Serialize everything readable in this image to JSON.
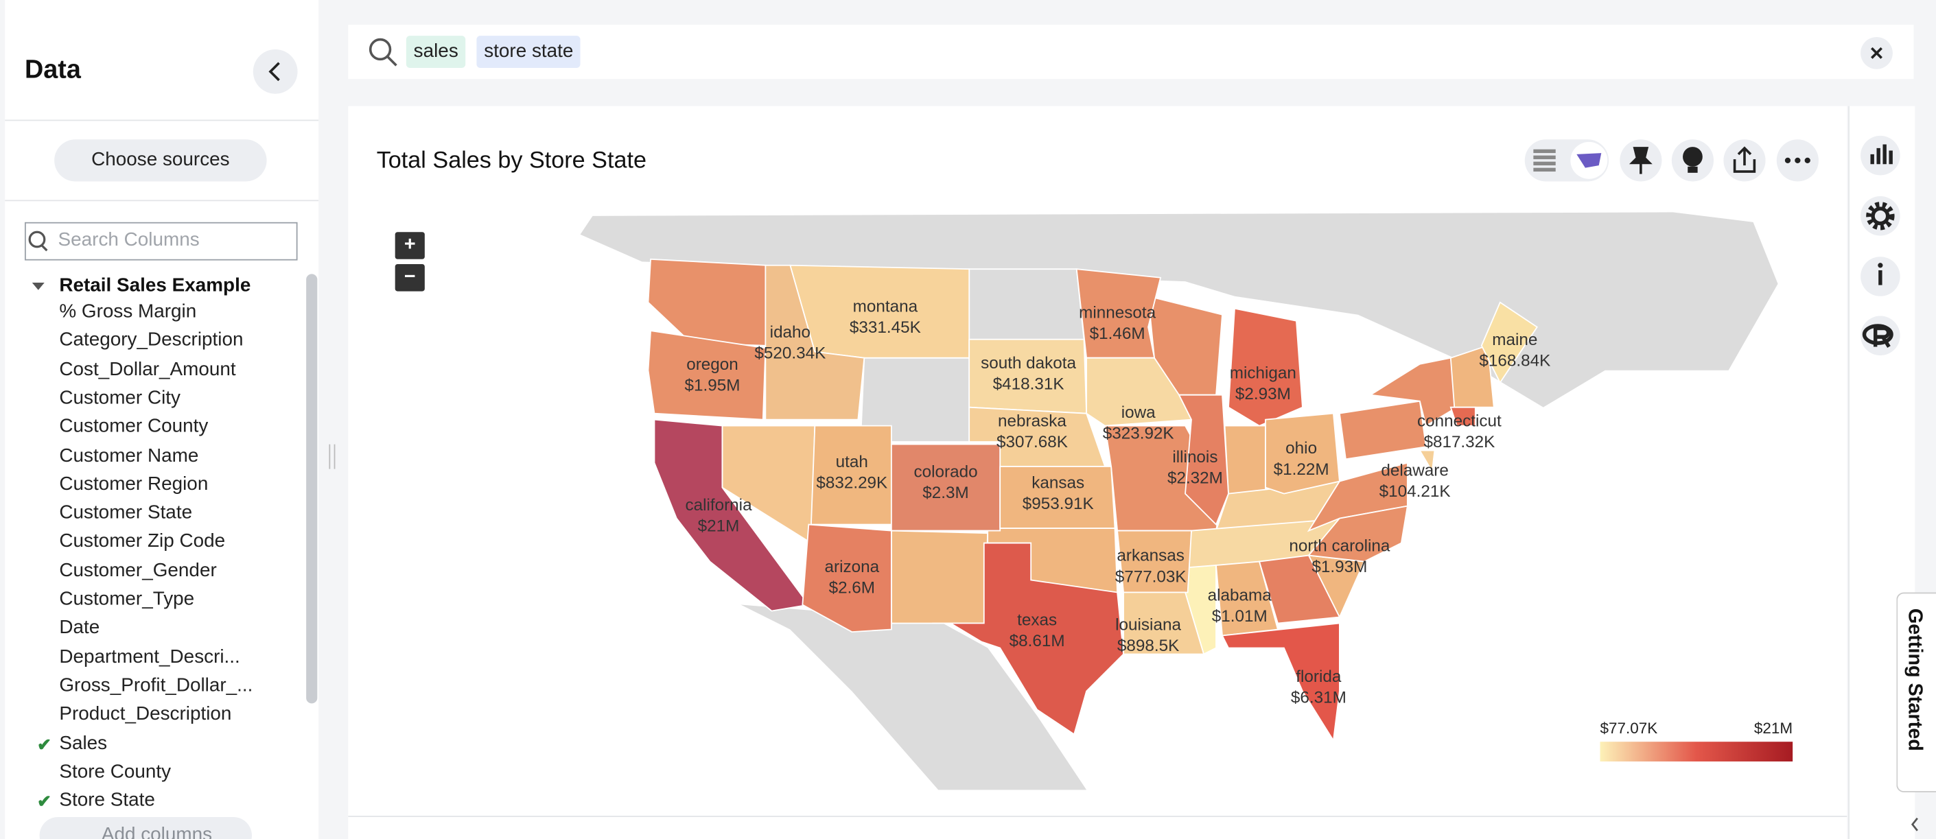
{
  "sidebar": {
    "title": "Data",
    "choose_sources": "Choose sources",
    "search_placeholder": "Search Columns",
    "source": "Retail Sales Example",
    "columns": [
      {
        "label": "% Gross Margin",
        "selected": false
      },
      {
        "label": "Category_Description",
        "selected": false
      },
      {
        "label": "Cost_Dollar_Amount",
        "selected": false
      },
      {
        "label": "Customer City",
        "selected": false
      },
      {
        "label": "Customer County",
        "selected": false
      },
      {
        "label": "Customer Name",
        "selected": false
      },
      {
        "label": "Customer Region",
        "selected": false
      },
      {
        "label": "Customer State",
        "selected": false
      },
      {
        "label": "Customer Zip Code",
        "selected": false
      },
      {
        "label": "Customer_Gender",
        "selected": false
      },
      {
        "label": "Customer_Type",
        "selected": false
      },
      {
        "label": "Date",
        "selected": false
      },
      {
        "label": "Department_Descri...",
        "selected": false
      },
      {
        "label": "Gross_Profit_Dollar_...",
        "selected": false
      },
      {
        "label": "Product_Description",
        "selected": false
      },
      {
        "label": "Sales",
        "selected": true
      },
      {
        "label": "Store County",
        "selected": false
      },
      {
        "label": "Store State",
        "selected": true
      }
    ],
    "add_columns": "Add columns"
  },
  "search": {
    "tokens": [
      "sales",
      "store state"
    ]
  },
  "card": {
    "title": "Total Sales by Store State",
    "zoom_in": "+",
    "zoom_out": "−"
  },
  "map": {
    "regions": [
      {
        "name": "montana",
        "value_label": "$331.45K",
        "color": "#f7d39b"
      },
      {
        "name": "idaho",
        "value_label": "$520.34K",
        "color": "#f0c08c"
      },
      {
        "name": "oregon",
        "value_label": "$1.95M",
        "color": "#e8916a"
      },
      {
        "name": "minnesota",
        "value_label": "$1.46M",
        "color": "#e8916a"
      },
      {
        "name": "south dakota",
        "value_label": "$418.31K",
        "color": "#f7d9a3"
      },
      {
        "name": "nebraska",
        "value_label": "$307.68K",
        "color": "#f5cf98"
      },
      {
        "name": "iowa",
        "value_label": "$323.92K",
        "color": "#f7d9a3"
      },
      {
        "name": "michigan",
        "value_label": "$2.93M",
        "color": "#e56a52"
      },
      {
        "name": "maine",
        "value_label": "$168.84K",
        "color": "#f9e0a4"
      },
      {
        "name": "connecticut",
        "value_label": "$817.32K",
        "color": "#e56a52"
      },
      {
        "name": "utah",
        "value_label": "$832.29K",
        "color": "#f0b77f"
      },
      {
        "name": "colorado",
        "value_label": "$2.3M",
        "color": "#e1876a"
      },
      {
        "name": "kansas",
        "value_label": "$953.91K",
        "color": "#f0b67f"
      },
      {
        "name": "illinois",
        "value_label": "$2.32M",
        "color": "#e58162"
      },
      {
        "name": "ohio",
        "value_label": "$1.22M",
        "color": "#f0b67f"
      },
      {
        "name": "delaware",
        "value_label": "$104.21K",
        "color": "#f5cf98"
      },
      {
        "name": "california",
        "value_label": "$21M",
        "color": "#b5475f"
      },
      {
        "name": "arizona",
        "value_label": "$2.6M",
        "color": "#e58162"
      },
      {
        "name": "arkansas",
        "value_label": "$777.03K",
        "color": "#f0b67f"
      },
      {
        "name": "north carolina",
        "value_label": "$1.93M",
        "color": "#e8916a"
      },
      {
        "name": "alabama",
        "value_label": "$1.01M",
        "color": "#f0b67f"
      },
      {
        "name": "texas",
        "value_label": "$8.61M",
        "color": "#dd5a4c"
      },
      {
        "name": "louisiana",
        "value_label": "$898.5K",
        "color": "#f5cf98"
      },
      {
        "name": "florida",
        "value_label": "$6.31M",
        "color": "#e3574a"
      }
    ],
    "legend": {
      "min_label": "$77.07K",
      "max_label": "$21M",
      "colors": [
        "#fdf1b8",
        "#e3574a",
        "#a61b22"
      ]
    }
  },
  "getting_started": "Getting Started"
}
